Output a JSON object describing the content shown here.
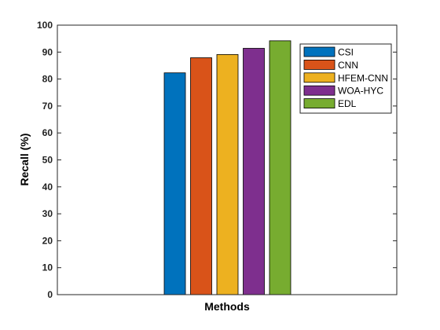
{
  "chart_data": {
    "type": "bar",
    "title": "",
    "xlabel": "Methods",
    "ylabel": "Recall (%)",
    "ylim": [
      0,
      100
    ],
    "yticks": [
      0,
      10,
      20,
      30,
      40,
      50,
      60,
      70,
      80,
      90,
      100
    ],
    "grid": false,
    "legend_position": "top-right",
    "series": [
      {
        "name": "CSI",
        "value": 82.3,
        "color": "#0072BD"
      },
      {
        "name": "CNN",
        "value": 87.9,
        "color": "#D95319"
      },
      {
        "name": "HFEM-CNN",
        "value": 89.1,
        "color": "#EDB120"
      },
      {
        "name": "WOA-HYC",
        "value": 91.4,
        "color": "#7E2F8E"
      },
      {
        "name": "EDL",
        "value": 94.2,
        "color": "#77AC30"
      }
    ]
  }
}
